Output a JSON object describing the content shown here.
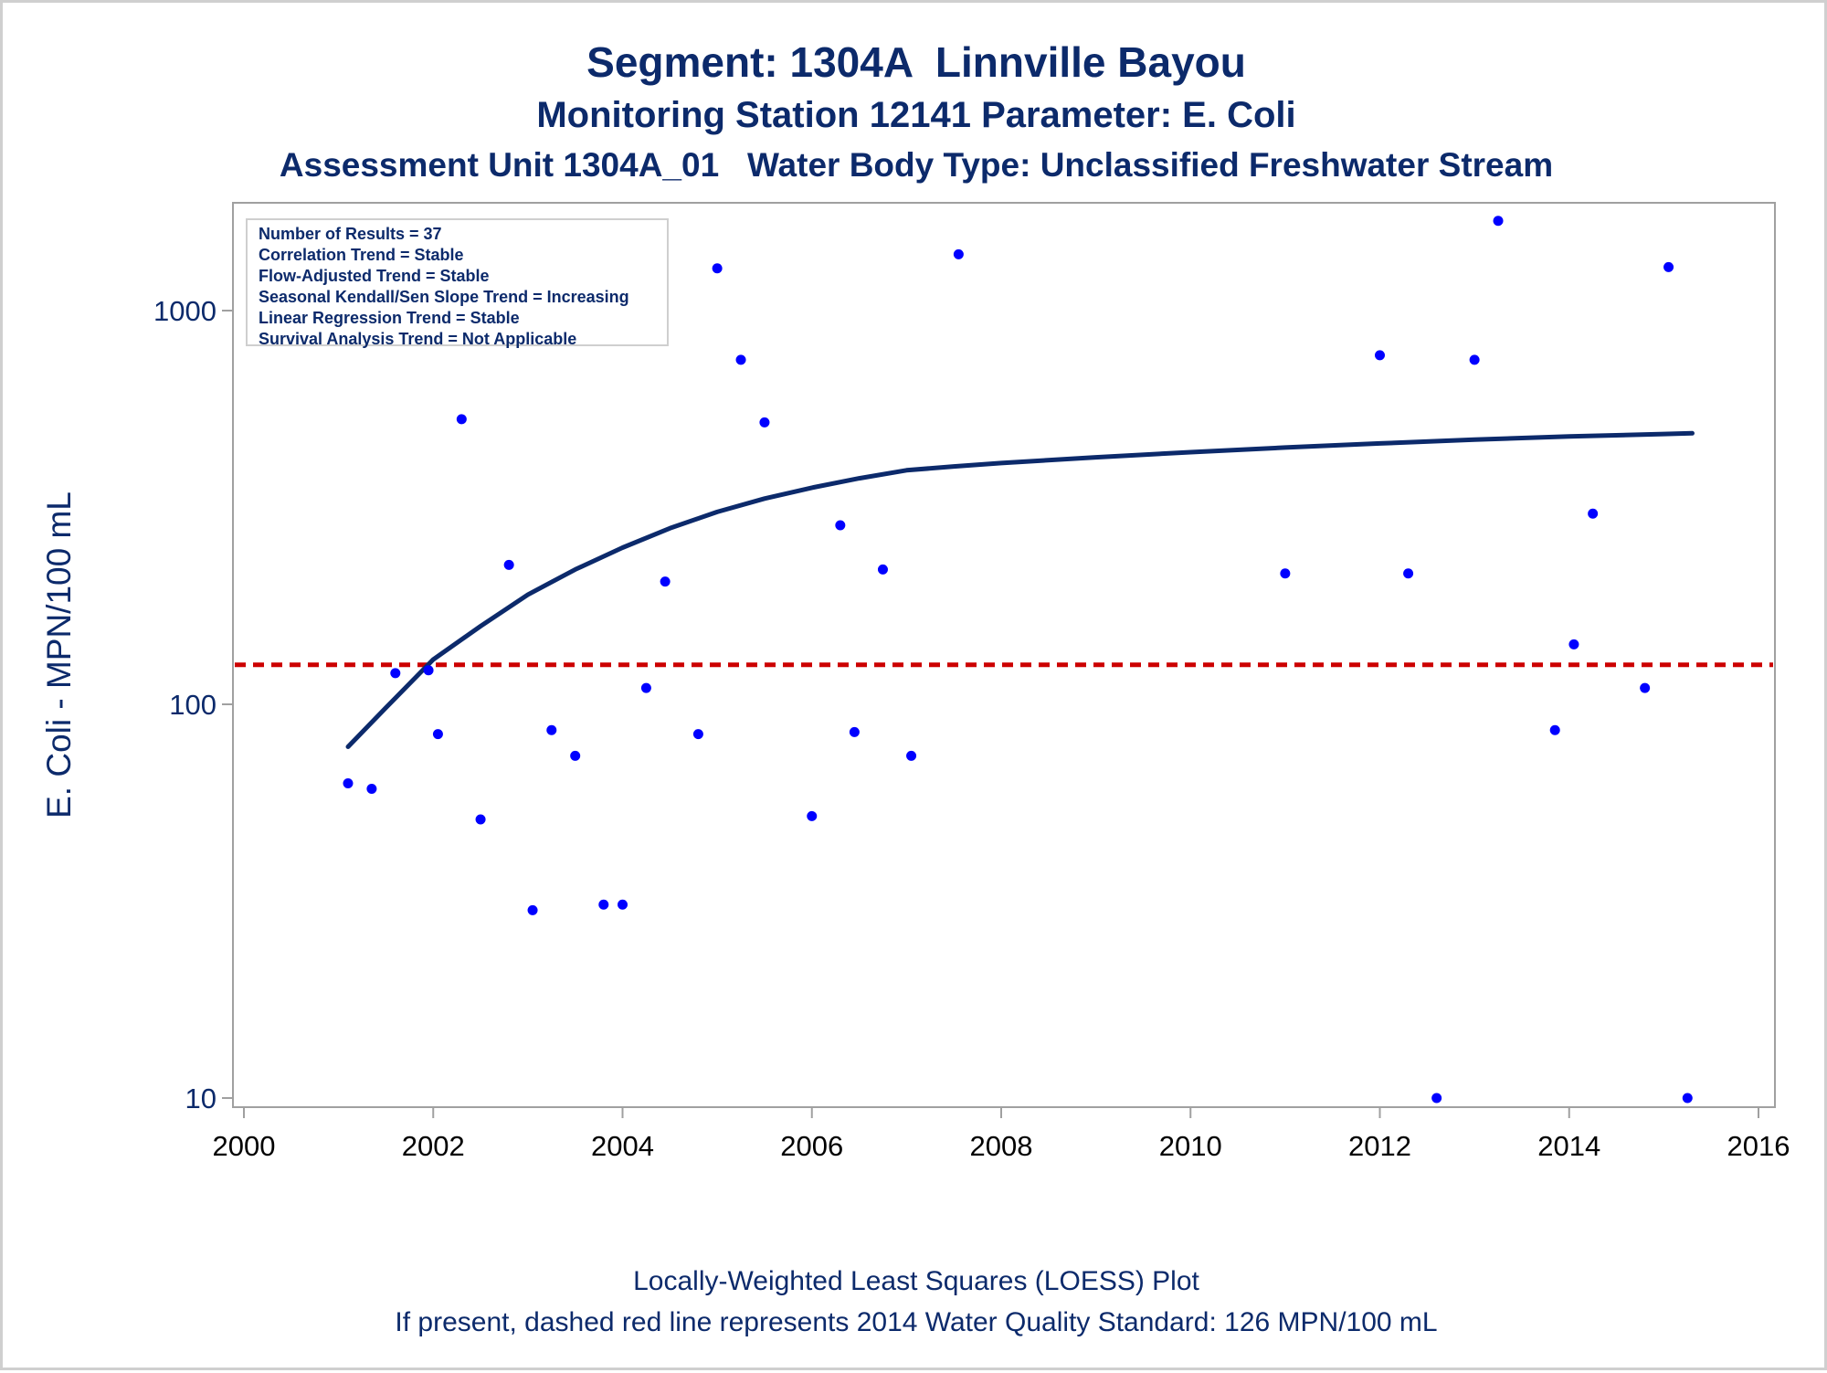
{
  "header": {
    "title": "Segment: 1304A  Linnville Bayou",
    "subtitle": "Monitoring Station 12141 Parameter: E. Coli",
    "subtitle2": "Assessment Unit 1304A_01   Water Body Type: Unclassified Freshwater Stream"
  },
  "stats_box": [
    "Number of Results = 37",
    "Correlation Trend = Stable",
    "Flow-Adjusted Trend = Stable",
    "Seasonal Kendall/Sen Slope Trend = Increasing",
    "Linear Regression Trend = Stable",
    "Survival Analysis Trend = Not Applicable"
  ],
  "footer": {
    "line1": "Locally-Weighted Least Squares (LOESS) Plot",
    "line2": "If present, dashed red line represents 2014 Water Quality Standard: 126 MPN/100 mL"
  },
  "colors": {
    "text": "#0c2a6b",
    "points": "#0000ff",
    "loess": "#0c2a6b",
    "standard": "#cc0000",
    "axis": "#a0a0a0"
  },
  "chart_data": {
    "type": "scatter",
    "ylabel": "E. Coli - MPN/100 mL",
    "xlabel": "",
    "y_scale": "log",
    "xlim": [
      2000,
      2016
    ],
    "ylim": [
      10,
      2000
    ],
    "x_ticks": [
      2000,
      2002,
      2004,
      2006,
      2008,
      2010,
      2012,
      2014,
      2016
    ],
    "y_ticks": [
      10,
      100,
      1000
    ],
    "standard_line": 126,
    "points": [
      {
        "x": 2001.1,
        "y": 63
      },
      {
        "x": 2001.35,
        "y": 61
      },
      {
        "x": 2001.6,
        "y": 120
      },
      {
        "x": 2001.95,
        "y": 122
      },
      {
        "x": 2002.05,
        "y": 84
      },
      {
        "x": 2002.3,
        "y": 530
      },
      {
        "x": 2002.5,
        "y": 51
      },
      {
        "x": 2002.8,
        "y": 226
      },
      {
        "x": 2003.05,
        "y": 30
      },
      {
        "x": 2003.25,
        "y": 86
      },
      {
        "x": 2003.5,
        "y": 74
      },
      {
        "x": 2003.8,
        "y": 31
      },
      {
        "x": 2004.0,
        "y": 31
      },
      {
        "x": 2004.25,
        "y": 110
      },
      {
        "x": 2004.45,
        "y": 205
      },
      {
        "x": 2004.8,
        "y": 84
      },
      {
        "x": 2005.0,
        "y": 1280
      },
      {
        "x": 2005.25,
        "y": 750
      },
      {
        "x": 2005.5,
        "y": 520
      },
      {
        "x": 2006.0,
        "y": 52
      },
      {
        "x": 2006.3,
        "y": 285
      },
      {
        "x": 2006.45,
        "y": 85
      },
      {
        "x": 2006.75,
        "y": 220
      },
      {
        "x": 2007.05,
        "y": 74
      },
      {
        "x": 2007.55,
        "y": 1390
      },
      {
        "x": 2011.0,
        "y": 215
      },
      {
        "x": 2012.0,
        "y": 770
      },
      {
        "x": 2012.3,
        "y": 215
      },
      {
        "x": 2012.6,
        "y": 10
      },
      {
        "x": 2013.0,
        "y": 750
      },
      {
        "x": 2013.25,
        "y": 1690
      },
      {
        "x": 2013.85,
        "y": 86
      },
      {
        "x": 2014.05,
        "y": 142
      },
      {
        "x": 2014.25,
        "y": 305
      },
      {
        "x": 2014.8,
        "y": 110
      },
      {
        "x": 2015.05,
        "y": 1290
      },
      {
        "x": 2015.25,
        "y": 10
      }
    ],
    "loess": [
      {
        "x": 2001.1,
        "y": 78
      },
      {
        "x": 2001.5,
        "y": 98
      },
      {
        "x": 2002.0,
        "y": 130
      },
      {
        "x": 2002.5,
        "y": 158
      },
      {
        "x": 2003.0,
        "y": 190
      },
      {
        "x": 2003.5,
        "y": 220
      },
      {
        "x": 2004.0,
        "y": 250
      },
      {
        "x": 2004.5,
        "y": 280
      },
      {
        "x": 2005.0,
        "y": 308
      },
      {
        "x": 2005.5,
        "y": 333
      },
      {
        "x": 2006.0,
        "y": 355
      },
      {
        "x": 2006.5,
        "y": 375
      },
      {
        "x": 2007.0,
        "y": 393
      },
      {
        "x": 2007.5,
        "y": 402
      },
      {
        "x": 2008.0,
        "y": 410
      },
      {
        "x": 2009.0,
        "y": 424
      },
      {
        "x": 2010.0,
        "y": 437
      },
      {
        "x": 2011.0,
        "y": 449
      },
      {
        "x": 2012.0,
        "y": 460
      },
      {
        "x": 2013.0,
        "y": 470
      },
      {
        "x": 2014.0,
        "y": 479
      },
      {
        "x": 2015.0,
        "y": 486
      },
      {
        "x": 2015.3,
        "y": 488
      }
    ]
  }
}
